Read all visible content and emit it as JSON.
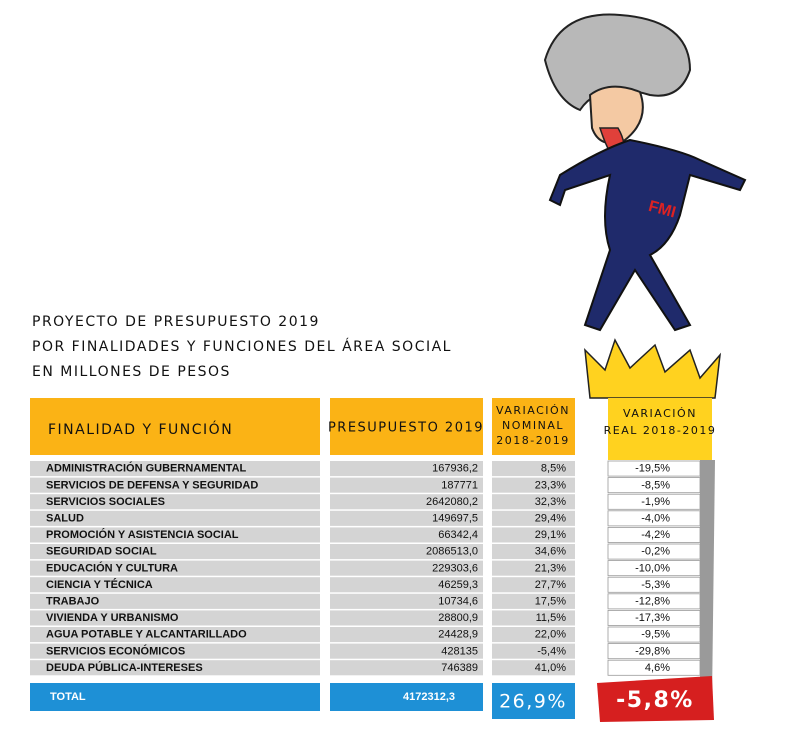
{
  "title": {
    "lines": [
      "PROYECTO DE PRESUPUESTO 2019",
      "POR FINALIDADES Y FUNCIONES DEL ÁREA SOCIAL",
      "EN MILLONES DE PESOS"
    ]
  },
  "table": {
    "headers": {
      "function": "FINALIDAD Y FUNCIÓN",
      "budget": "PRESUPUESTO 2019",
      "nominal": [
        "VARIACIÓN",
        "NOMINAL",
        "2018-2019"
      ],
      "real": [
        "VARIACIÓN",
        "REAL 2018-2019"
      ]
    },
    "rows": [
      [
        "ADMINISTRACIÓN GUBERNAMENTAL",
        "167936,2",
        "8,5%",
        "-19,5%"
      ],
      [
        "SERVICIOS DE DEFENSA Y SEGURIDAD",
        "187771",
        "23,3%",
        "-8,5%"
      ],
      [
        "SERVICIOS SOCIALES",
        "2642080,2",
        "32,3%",
        "-1,9%"
      ],
      [
        "SALUD",
        "149697,5",
        "29,4%",
        "-4,0%"
      ],
      [
        "PROMOCIÓN Y ASISTENCIA SOCIAL",
        "66342,4",
        "29,1%",
        "-4,2%"
      ],
      [
        "SEGURIDAD SOCIAL",
        "2086513,0",
        "34,6%",
        "-0,2%"
      ],
      [
        "EDUCACIÓN Y CULTURA",
        "229303,6",
        "21,3%",
        "-10,0%"
      ],
      [
        "CIENCIA Y TÉCNICA",
        "46259,3",
        "27,7%",
        "-5,3%"
      ],
      [
        "TRABAJO",
        "10734,6",
        "17,5%",
        "-12,8%"
      ],
      [
        "VIVIENDA Y URBANISMO",
        "28800,9",
        "11,5%",
        "-17,3%"
      ],
      [
        "AGUA POTABLE Y ALCANTARILLADO",
        "24428,9",
        "22,0%",
        "-9,5%"
      ],
      [
        "SERVICIOS ECONÓMICOS",
        "428135",
        "-5,4%",
        "-29,8%"
      ],
      [
        "DEUDA PÚBLICA-INTERESES",
        "746389",
        "41,0%",
        "4,6%"
      ]
    ],
    "total": [
      "TOTAL",
      "4172312,3",
      "26,9%",
      "-5,8%"
    ]
  },
  "illustration": {
    "shirt_text": "FMI"
  }
}
